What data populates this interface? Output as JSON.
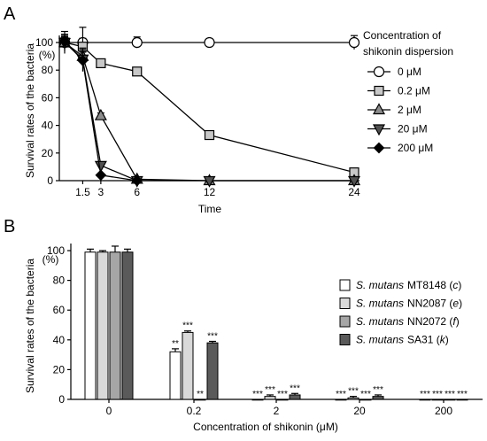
{
  "chart_data": [
    {
      "panel": "A",
      "type": "line",
      "xlabel": "Time",
      "ylabel": "Survival rates of the bacteria",
      "y_unit": "(%)",
      "xlim": [
        0,
        24
      ],
      "ylim": [
        0,
        100
      ],
      "x_ticks": [
        1.5,
        3,
        6,
        12,
        24
      ],
      "y_ticks": [
        0,
        20,
        40,
        60,
        80,
        100
      ],
      "legend_title": [
        "Concentration of",
        "shikonin dispersion"
      ],
      "legend_position": "right",
      "series": [
        {
          "name": "0 μM",
          "marker": "circle",
          "fill": "#ffffff",
          "x": [
            0,
            1.5,
            6,
            12,
            24
          ],
          "y": [
            100,
            100,
            100,
            100,
            100
          ],
          "err": [
            8,
            3,
            4,
            2,
            5
          ]
        },
        {
          "name": "0.2 μM",
          "marker": "square",
          "fill": "#c8c8c8",
          "x": [
            0,
            1.5,
            3,
            6,
            12,
            24
          ],
          "y": [
            100,
            97,
            85,
            79,
            33,
            6
          ],
          "err": [
            6,
            14,
            3,
            2,
            2,
            2
          ]
        },
        {
          "name": "2 μM",
          "marker": "triangle-up",
          "fill": "#8c8c8c",
          "x": [
            0,
            1.5,
            3,
            6,
            12,
            24
          ],
          "y": [
            100,
            90,
            47,
            1,
            0,
            0
          ],
          "err": [
            4,
            6,
            2,
            1,
            1,
            1
          ]
        },
        {
          "name": "20 μM",
          "marker": "triangle-down",
          "fill": "#505050",
          "x": [
            0,
            1.5,
            3,
            6,
            12,
            24
          ],
          "y": [
            100,
            88,
            11,
            0,
            0,
            0
          ],
          "err": [
            4,
            5,
            2,
            1,
            1,
            1
          ]
        },
        {
          "name": "200 μM",
          "marker": "diamond",
          "fill": "#000000",
          "x": [
            0,
            1.5,
            3,
            6
          ],
          "y": [
            101,
            87,
            4,
            0
          ],
          "err": [
            4,
            8,
            1,
            1
          ]
        }
      ]
    },
    {
      "panel": "B",
      "type": "bar",
      "xlabel": "Concentration of shikonin (μM)",
      "ylabel": "Survival rates of the bacteria",
      "y_unit": "(%)",
      "ylim": [
        0,
        100
      ],
      "y_ticks": [
        0,
        20,
        40,
        60,
        80,
        100
      ],
      "categories": [
        "0",
        "0.2",
        "2",
        "20",
        "200"
      ],
      "legend_position": "right",
      "series": [
        {
          "name_species": "S. mutans",
          "name_strain": "MT8148 (",
          "name_serotype": "c",
          "name_close": ")",
          "fill": "#ffffff",
          "values": [
            99,
            32,
            0,
            0,
            0
          ],
          "err": [
            2,
            2,
            0,
            0,
            0
          ],
          "sig": [
            "",
            "**",
            "***",
            "***",
            "***"
          ]
        },
        {
          "name_species": "S. mutans",
          "name_strain": "NN2087 (",
          "name_serotype": "e",
          "name_close": ")",
          "fill": "#d9d9d9",
          "values": [
            99,
            45,
            2,
            1,
            0
          ],
          "err": [
            1,
            1,
            1,
            1,
            0
          ],
          "sig": [
            "",
            "***",
            "***",
            "***",
            "***"
          ]
        },
        {
          "name_species": "S. mutans",
          "name_strain": "NN2072 (",
          "name_serotype": "f",
          "name_close": ")",
          "fill": "#a6a6a6",
          "values": [
            99,
            0,
            0,
            0,
            0
          ],
          "err": [
            4,
            0,
            0,
            0,
            0
          ],
          "sig": [
            "",
            "**",
            "***",
            "***",
            "***"
          ]
        },
        {
          "name_species": "S. mutans",
          "name_strain": "SA31 (",
          "name_serotype": "k",
          "name_close": ")",
          "fill": "#5a5a5a",
          "values": [
            99,
            38,
            3,
            2,
            0
          ],
          "err": [
            2,
            1,
            1,
            1,
            0
          ],
          "sig": [
            "",
            "***",
            "***",
            "***",
            "***"
          ]
        }
      ]
    }
  ]
}
